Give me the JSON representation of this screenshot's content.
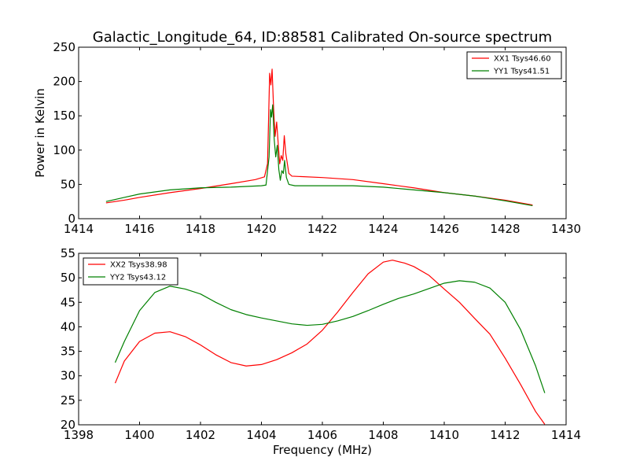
{
  "chart_data": [
    {
      "type": "line",
      "title": "Galactic_Longitude_64, ID:88581 Calibrated On-source spectrum",
      "xlabel": "",
      "ylabel": "Power in Kelvin",
      "xlim": [
        1414,
        1430
      ],
      "ylim": [
        0,
        250
      ],
      "xticks": [
        1414,
        1416,
        1418,
        1420,
        1422,
        1424,
        1426,
        1428,
        1430
      ],
      "yticks": [
        0,
        50,
        100,
        150,
        200,
        250
      ],
      "grid": false,
      "legend_position": "top-right",
      "series": [
        {
          "name": "XX1 Tsys46.60",
          "color": "#ff0000",
          "points": [
            [
              1414.9,
              23
            ],
            [
              1415.5,
              27
            ],
            [
              1416,
              31
            ],
            [
              1417,
              38
            ],
            [
              1418,
              44
            ],
            [
              1419,
              51
            ],
            [
              1419.8,
              57
            ],
            [
              1420.1,
              61
            ],
            [
              1420.2,
              80
            ],
            [
              1420.27,
              212
            ],
            [
              1420.31,
              195
            ],
            [
              1420.35,
              218
            ],
            [
              1420.4,
              160
            ],
            [
              1420.45,
              120
            ],
            [
              1420.5,
              141
            ],
            [
              1420.55,
              110
            ],
            [
              1420.6,
              80
            ],
            [
              1420.65,
              92
            ],
            [
              1420.7,
              85
            ],
            [
              1420.75,
              121
            ],
            [
              1420.8,
              95
            ],
            [
              1420.9,
              66
            ],
            [
              1421,
              62
            ],
            [
              1422,
              60
            ],
            [
              1423,
              57
            ],
            [
              1424,
              51
            ],
            [
              1425,
              45
            ],
            [
              1426,
              38
            ],
            [
              1427,
              33
            ],
            [
              1428,
              27
            ],
            [
              1428.9,
              20
            ]
          ]
        },
        {
          "name": "YY1 Tsys41.51",
          "color": "#008000",
          "points": [
            [
              1414.9,
              25
            ],
            [
              1415.5,
              31
            ],
            [
              1416,
              36
            ],
            [
              1417,
              42
            ],
            [
              1418,
              45
            ],
            [
              1419,
              46
            ],
            [
              1420,
              48
            ],
            [
              1420.15,
              49
            ],
            [
              1420.25,
              90
            ],
            [
              1420.3,
              159
            ],
            [
              1420.33,
              148
            ],
            [
              1420.37,
              166
            ],
            [
              1420.42,
              115
            ],
            [
              1420.47,
              90
            ],
            [
              1420.52,
              107
            ],
            [
              1420.57,
              72
            ],
            [
              1420.62,
              56
            ],
            [
              1420.67,
              70
            ],
            [
              1420.72,
              66
            ],
            [
              1420.76,
              85
            ],
            [
              1420.82,
              60
            ],
            [
              1420.9,
              50
            ],
            [
              1421.1,
              48
            ],
            [
              1422,
              48
            ],
            [
              1423,
              48
            ],
            [
              1424,
              46
            ],
            [
              1425,
              42
            ],
            [
              1426,
              38
            ],
            [
              1427,
              33
            ],
            [
              1428,
              26
            ],
            [
              1428.9,
              19
            ]
          ]
        }
      ]
    },
    {
      "type": "line",
      "title": "",
      "xlabel": "Frequency (MHz)",
      "ylabel": "",
      "xlim": [
        1398,
        1414
      ],
      "ylim": [
        20,
        55
      ],
      "xticks": [
        1398,
        1400,
        1402,
        1404,
        1406,
        1408,
        1410,
        1412,
        1414
      ],
      "yticks": [
        20,
        25,
        30,
        35,
        40,
        45,
        50,
        55
      ],
      "grid": false,
      "legend_position": "top-left",
      "series": [
        {
          "name": "XX2 Tsys38.98",
          "color": "#ff0000",
          "points": [
            [
              1399.2,
              28.5
            ],
            [
              1399.5,
              33
            ],
            [
              1400,
              37
            ],
            [
              1400.5,
              38.7
            ],
            [
              1401,
              39
            ],
            [
              1401.5,
              38
            ],
            [
              1402,
              36.3
            ],
            [
              1402.5,
              34.3
            ],
            [
              1403,
              32.7
            ],
            [
              1403.5,
              32
            ],
            [
              1404,
              32.3
            ],
            [
              1404.5,
              33.3
            ],
            [
              1405,
              34.7
            ],
            [
              1405.5,
              36.5
            ],
            [
              1406,
              39.3
            ],
            [
              1406.5,
              43
            ],
            [
              1407,
              47
            ],
            [
              1407.5,
              50.8
            ],
            [
              1408,
              53.2
            ],
            [
              1408.3,
              53.6
            ],
            [
              1408.7,
              53
            ],
            [
              1409,
              52.3
            ],
            [
              1409.5,
              50.5
            ],
            [
              1410,
              47.7
            ],
            [
              1410.5,
              45
            ],
            [
              1411,
              41.7
            ],
            [
              1411.5,
              38.5
            ],
            [
              1412,
              33.6
            ],
            [
              1412.5,
              28.3
            ],
            [
              1413,
              22.7
            ],
            [
              1413.3,
              20.1
            ]
          ]
        },
        {
          "name": "YY2 Tsys43.12",
          "color": "#008000",
          "points": [
            [
              1399.2,
              32.7
            ],
            [
              1399.5,
              37
            ],
            [
              1400,
              43.3
            ],
            [
              1400.5,
              47
            ],
            [
              1401,
              48.3
            ],
            [
              1401.5,
              47.7
            ],
            [
              1402,
              46.7
            ],
            [
              1402.5,
              45
            ],
            [
              1403,
              43.5
            ],
            [
              1403.5,
              42.5
            ],
            [
              1404,
              41.8
            ],
            [
              1404.5,
              41.2
            ],
            [
              1405,
              40.6
            ],
            [
              1405.5,
              40.3
            ],
            [
              1406,
              40.5
            ],
            [
              1406.5,
              41.2
            ],
            [
              1407,
              42.1
            ],
            [
              1407.5,
              43.3
            ],
            [
              1408,
              44.6
            ],
            [
              1408.5,
              45.8
            ],
            [
              1409,
              46.7
            ],
            [
              1409.5,
              47.8
            ],
            [
              1410,
              48.9
            ],
            [
              1410.5,
              49.4
            ],
            [
              1411,
              49.1
            ],
            [
              1411.5,
              47.9
            ],
            [
              1412,
              45
            ],
            [
              1412.5,
              39.5
            ],
            [
              1413,
              32
            ],
            [
              1413.3,
              26.5
            ]
          ]
        }
      ]
    }
  ]
}
